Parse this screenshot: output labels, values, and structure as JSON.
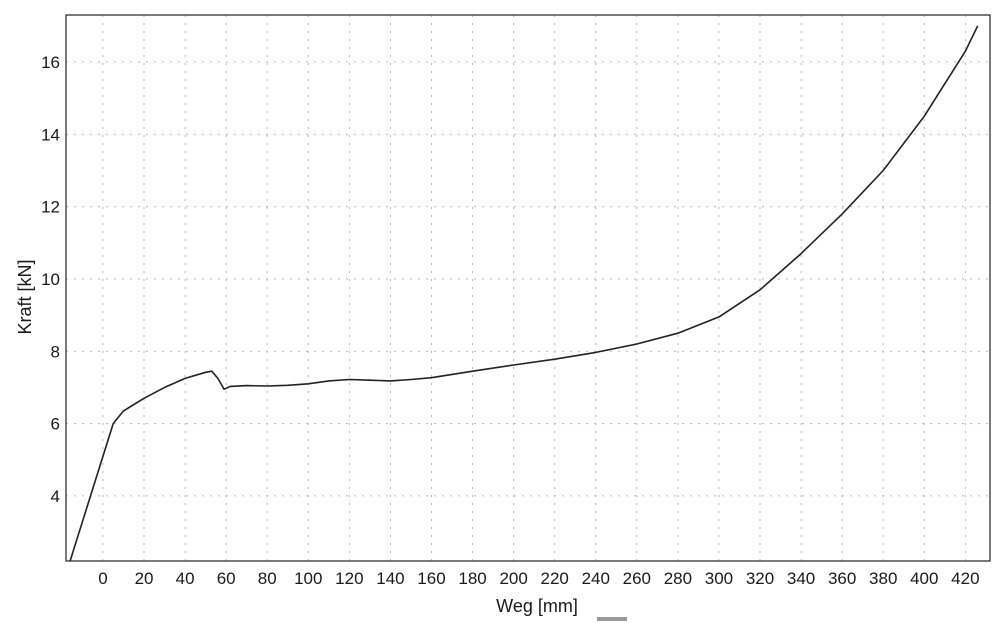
{
  "chart_data": {
    "type": "line",
    "xlabel": "Weg [mm]",
    "ylabel": "Kraft [kN]",
    "xlim": [
      -18,
      432
    ],
    "ylim": [
      2.2,
      17.3
    ],
    "x_ticks": [
      0,
      20,
      40,
      60,
      80,
      100,
      120,
      140,
      160,
      180,
      200,
      220,
      240,
      260,
      280,
      300,
      320,
      340,
      360,
      380,
      400,
      420
    ],
    "y_ticks": [
      4,
      6,
      8,
      10,
      12,
      14,
      16
    ],
    "grid": true,
    "legend": "none",
    "series": [
      {
        "color": "#222222",
        "x": [
          -16,
          0,
          5,
          10,
          20,
          30,
          40,
          50,
          53,
          56,
          59,
          62,
          70,
          80,
          90,
          100,
          110,
          120,
          130,
          140,
          150,
          160,
          180,
          200,
          220,
          240,
          260,
          280,
          300,
          320,
          340,
          360,
          380,
          400,
          410,
          420,
          426
        ],
        "y": [
          2.2,
          5.1,
          6.0,
          6.35,
          6.7,
          7.0,
          7.25,
          7.42,
          7.45,
          7.25,
          6.95,
          7.03,
          7.05,
          7.04,
          7.06,
          7.1,
          7.18,
          7.22,
          7.2,
          7.18,
          7.22,
          7.27,
          7.45,
          7.62,
          7.78,
          7.97,
          8.2,
          8.5,
          8.95,
          9.7,
          10.7,
          11.8,
          13.0,
          14.5,
          15.4,
          16.3,
          17.0
        ]
      }
    ]
  }
}
